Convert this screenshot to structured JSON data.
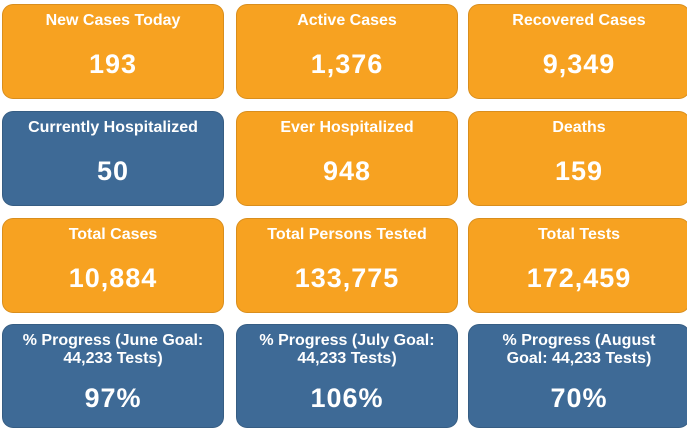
{
  "cards": [
    {
      "label": "New Cases Today",
      "value": "193",
      "color": "#f7a221"
    },
    {
      "label": "Active Cases",
      "value": "1,376",
      "color": "#f7a221"
    },
    {
      "label": "Recovered Cases",
      "value": "9,349",
      "color": "#f7a221"
    },
    {
      "label": "Currently Hospitalized",
      "value": "50",
      "color": "#3e6a96"
    },
    {
      "label": "Ever Hospitalized",
      "value": "948",
      "color": "#f7a221"
    },
    {
      "label": "Deaths",
      "value": "159",
      "color": "#f7a221"
    },
    {
      "label": "Total Cases",
      "value": "10,884",
      "color": "#f7a221"
    },
    {
      "label": "Total Persons Tested",
      "value": "133,775",
      "color": "#f7a221"
    },
    {
      "label": "Total Tests",
      "value": "172,459",
      "color": "#f7a221"
    },
    {
      "label": "% Progress (June Goal: 44,233 Tests)",
      "value": "97%",
      "color": "#3e6a96"
    },
    {
      "label": "% Progress (July Goal: 44,233 Tests)",
      "value": "106%",
      "color": "#3e6a96"
    },
    {
      "label": "% Progress (August Goal: 44,233 Tests)",
      "value": "70%",
      "color": "#3e6a96"
    }
  ]
}
